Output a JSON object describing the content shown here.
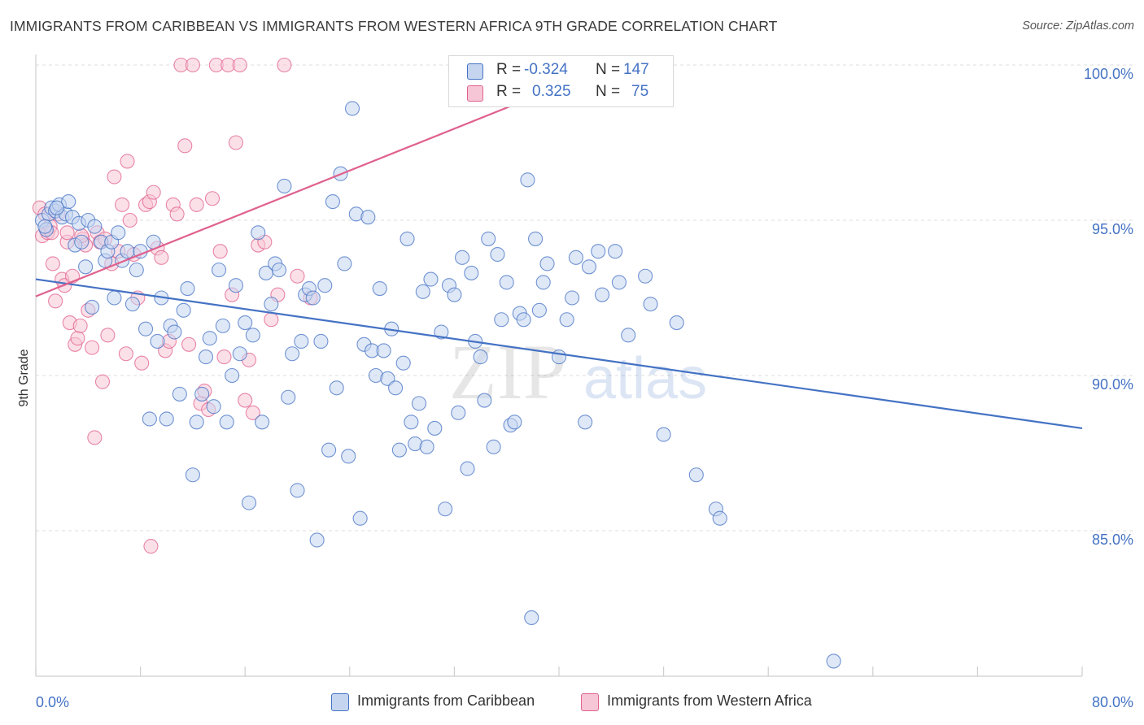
{
  "title": "IMMIGRANTS FROM CARIBBEAN VS IMMIGRANTS FROM WESTERN AFRICA 9TH GRADE CORRELATION CHART",
  "source": "Source: ZipAtlas.com",
  "watermark": {
    "zip": "ZIP",
    "atlas": "atlas"
  },
  "legend": {
    "r_label": "R =",
    "n_label": "N =",
    "rows": [
      {
        "r": "-0.324",
        "n": "147"
      },
      {
        "r": "0.325",
        "n": "75"
      }
    ]
  },
  "bottom_legend": [
    "Immigrants from Caribbean",
    "Immigrants from Western Africa"
  ],
  "chart_data": {
    "type": "scatter",
    "title": "IMMIGRANTS FROM CARIBBEAN VS IMMIGRANTS FROM WESTERN AFRICA 9TH GRADE CORRELATION CHART",
    "xlabel": "",
    "ylabel": "9th Grade",
    "xlim": [
      0,
      80
    ],
    "ylim": [
      80.5,
      100.5
    ],
    "x_tick_labels": [
      "0.0%",
      "80.0%"
    ],
    "y_ticks": [
      85,
      90,
      95,
      100
    ],
    "y_tick_labels": [
      "85.0%",
      "90.0%",
      "95.0%",
      "100.0%"
    ],
    "grid": true,
    "legend_position": "top-center",
    "colors": {
      "caribbean": "#4472c4",
      "caribbean_fill": "#c5d5f0",
      "west_africa": "#e0608e",
      "west_africa_fill": "#f7c6d6"
    },
    "series": [
      {
        "name": "Immigrants from Caribbean",
        "r": -0.324,
        "n": 147,
        "trend": {
          "x": [
            0,
            80
          ],
          "y": [
            93.1,
            88.3
          ]
        },
        "points": [
          [
            0.5,
            95.0
          ],
          [
            0.8,
            94.7
          ],
          [
            1.0,
            95.2
          ],
          [
            1.2,
            95.4
          ],
          [
            1.5,
            95.3
          ],
          [
            1.8,
            95.5
          ],
          [
            2.0,
            95.1
          ],
          [
            2.3,
            95.2
          ],
          [
            2.5,
            95.6
          ],
          [
            2.8,
            95.1
          ],
          [
            3.0,
            94.2
          ],
          [
            3.3,
            94.9
          ],
          [
            3.5,
            94.3
          ],
          [
            3.8,
            93.5
          ],
          [
            4.0,
            95.0
          ],
          [
            4.3,
            92.2
          ],
          [
            4.5,
            94.8
          ],
          [
            5.0,
            94.3
          ],
          [
            5.3,
            93.7
          ],
          [
            5.5,
            94.0
          ],
          [
            5.8,
            94.3
          ],
          [
            6.0,
            92.5
          ],
          [
            6.3,
            94.6
          ],
          [
            6.6,
            93.7
          ],
          [
            7.0,
            94.0
          ],
          [
            7.4,
            92.3
          ],
          [
            7.7,
            93.4
          ],
          [
            8.0,
            94.0
          ],
          [
            8.4,
            91.5
          ],
          [
            8.7,
            88.6
          ],
          [
            9.0,
            94.3
          ],
          [
            9.3,
            91.1
          ],
          [
            9.6,
            92.5
          ],
          [
            10.0,
            88.6
          ],
          [
            10.3,
            91.6
          ],
          [
            10.6,
            91.4
          ],
          [
            11.0,
            89.4
          ],
          [
            11.3,
            92.1
          ],
          [
            11.6,
            92.8
          ],
          [
            12.0,
            86.8
          ],
          [
            12.3,
            88.5
          ],
          [
            12.7,
            89.4
          ],
          [
            13.0,
            90.6
          ],
          [
            13.3,
            91.2
          ],
          [
            13.6,
            89.0
          ],
          [
            14.0,
            93.4
          ],
          [
            14.3,
            91.6
          ],
          [
            14.6,
            88.5
          ],
          [
            15.0,
            90.0
          ],
          [
            15.3,
            92.9
          ],
          [
            15.6,
            90.7
          ],
          [
            16.0,
            91.7
          ],
          [
            16.3,
            85.9
          ],
          [
            16.6,
            91.3
          ],
          [
            17.0,
            94.6
          ],
          [
            17.3,
            88.5
          ],
          [
            17.6,
            93.3
          ],
          [
            18.0,
            92.3
          ],
          [
            18.3,
            93.6
          ],
          [
            18.6,
            93.4
          ],
          [
            19.0,
            96.1
          ],
          [
            19.3,
            89.3
          ],
          [
            19.6,
            90.7
          ],
          [
            20.0,
            86.3
          ],
          [
            20.3,
            91.1
          ],
          [
            20.6,
            92.6
          ],
          [
            20.9,
            92.8
          ],
          [
            21.2,
            92.5
          ],
          [
            21.5,
            84.7
          ],
          [
            21.8,
            91.1
          ],
          [
            22.1,
            92.9
          ],
          [
            22.4,
            87.6
          ],
          [
            22.7,
            95.6
          ],
          [
            23.0,
            89.6
          ],
          [
            23.3,
            96.5
          ],
          [
            23.6,
            93.6
          ],
          [
            23.9,
            87.4
          ],
          [
            24.2,
            98.6
          ],
          [
            24.5,
            95.2
          ],
          [
            24.8,
            85.4
          ],
          [
            25.1,
            91.0
          ],
          [
            25.4,
            95.1
          ],
          [
            25.7,
            90.8
          ],
          [
            26.0,
            90.0
          ],
          [
            26.3,
            92.8
          ],
          [
            26.6,
            90.8
          ],
          [
            26.9,
            89.9
          ],
          [
            27.2,
            91.5
          ],
          [
            27.5,
            89.6
          ],
          [
            27.8,
            87.6
          ],
          [
            28.1,
            90.4
          ],
          [
            28.4,
            94.4
          ],
          [
            28.7,
            88.5
          ],
          [
            29.0,
            87.8
          ],
          [
            29.3,
            89.1
          ],
          [
            29.6,
            92.7
          ],
          [
            29.9,
            87.7
          ],
          [
            30.2,
            93.1
          ],
          [
            30.5,
            88.3
          ],
          [
            31.0,
            91.4
          ],
          [
            31.3,
            85.7
          ],
          [
            31.6,
            92.9
          ],
          [
            32.0,
            92.6
          ],
          [
            32.3,
            88.8
          ],
          [
            32.6,
            93.8
          ],
          [
            33.0,
            87.0
          ],
          [
            33.3,
            93.3
          ],
          [
            33.6,
            91.1
          ],
          [
            34.0,
            90.6
          ],
          [
            34.3,
            89.2
          ],
          [
            34.6,
            94.4
          ],
          [
            35.0,
            87.7
          ],
          [
            35.3,
            93.9
          ],
          [
            35.6,
            91.8
          ],
          [
            36.0,
            93.0
          ],
          [
            36.3,
            88.4
          ],
          [
            36.6,
            88.5
          ],
          [
            37.0,
            92.0
          ],
          [
            37.3,
            91.8
          ],
          [
            37.6,
            96.3
          ],
          [
            37.9,
            82.2
          ],
          [
            38.2,
            94.4
          ],
          [
            38.5,
            92.1
          ],
          [
            38.8,
            93.0
          ],
          [
            39.1,
            93.6
          ],
          [
            40.0,
            90.6
          ],
          [
            40.6,
            91.8
          ],
          [
            41.0,
            92.5
          ],
          [
            41.3,
            93.8
          ],
          [
            42.0,
            88.5
          ],
          [
            42.3,
            93.5
          ],
          [
            43.0,
            94.0
          ],
          [
            43.3,
            92.6
          ],
          [
            44.3,
            94.0
          ],
          [
            44.6,
            93.0
          ],
          [
            45.0,
            100.0
          ],
          [
            45.3,
            91.3
          ],
          [
            46.6,
            93.2
          ],
          [
            47.0,
            92.3
          ],
          [
            48.0,
            88.1
          ],
          [
            49.0,
            91.7
          ],
          [
            50.5,
            86.8
          ],
          [
            52.0,
            85.7
          ],
          [
            52.3,
            85.4
          ],
          [
            61.0,
            80.8
          ],
          [
            0.7,
            94.8
          ],
          [
            1.6,
            95.4
          ]
        ]
      },
      {
        "name": "Immigrants from Western Africa",
        "r": 0.325,
        "n": 75,
        "trend": {
          "x": [
            0,
            40
          ],
          "y": [
            92.55,
            99.3
          ]
        },
        "points": [
          [
            0.3,
            95.4
          ],
          [
            0.5,
            94.5
          ],
          [
            0.7,
            95.2
          ],
          [
            0.9,
            94.6
          ],
          [
            1.1,
            94.8
          ],
          [
            1.3,
            93.6
          ],
          [
            1.5,
            92.4
          ],
          [
            1.7,
            95.2
          ],
          [
            2.0,
            93.1
          ],
          [
            2.2,
            92.9
          ],
          [
            2.4,
            94.3
          ],
          [
            2.6,
            91.7
          ],
          [
            2.8,
            93.2
          ],
          [
            3.0,
            91.0
          ],
          [
            3.2,
            91.2
          ],
          [
            3.4,
            91.6
          ],
          [
            3.6,
            94.4
          ],
          [
            3.8,
            94.2
          ],
          [
            4.0,
            92.1
          ],
          [
            4.3,
            90.9
          ],
          [
            4.5,
            88.0
          ],
          [
            4.7,
            94.6
          ],
          [
            4.9,
            94.3
          ],
          [
            5.1,
            89.8
          ],
          [
            5.3,
            94.4
          ],
          [
            5.5,
            91.3
          ],
          [
            5.8,
            93.6
          ],
          [
            6.0,
            96.4
          ],
          [
            6.3,
            94.0
          ],
          [
            6.6,
            95.5
          ],
          [
            6.9,
            90.7
          ],
          [
            7.2,
            95.0
          ],
          [
            7.5,
            93.9
          ],
          [
            7.8,
            92.5
          ],
          [
            8.1,
            90.4
          ],
          [
            8.4,
            95.5
          ],
          [
            8.7,
            95.6
          ],
          [
            9.0,
            95.9
          ],
          [
            9.3,
            94.1
          ],
          [
            9.6,
            93.8
          ],
          [
            9.9,
            90.8
          ],
          [
            10.2,
            91.1
          ],
          [
            10.5,
            95.5
          ],
          [
            10.8,
            95.2
          ],
          [
            11.1,
            100.0
          ],
          [
            11.4,
            97.4
          ],
          [
            11.7,
            91.0
          ],
          [
            12.0,
            100.0
          ],
          [
            12.3,
            95.5
          ],
          [
            12.6,
            89.1
          ],
          [
            12.9,
            89.5
          ],
          [
            13.2,
            88.9
          ],
          [
            13.5,
            95.7
          ],
          [
            13.8,
            100.0
          ],
          [
            14.1,
            94.0
          ],
          [
            14.4,
            90.6
          ],
          [
            14.7,
            100.0
          ],
          [
            15.0,
            92.6
          ],
          [
            15.3,
            97.5
          ],
          [
            15.6,
            100.0
          ],
          [
            16.0,
            89.2
          ],
          [
            16.3,
            90.5
          ],
          [
            16.6,
            88.8
          ],
          [
            17.0,
            94.2
          ],
          [
            17.5,
            94.3
          ],
          [
            18.0,
            91.8
          ],
          [
            18.5,
            92.6
          ],
          [
            19.0,
            100.0
          ],
          [
            20.0,
            93.2
          ],
          [
            21.0,
            92.5
          ],
          [
            8.8,
            84.5
          ],
          [
            7.0,
            96.9
          ],
          [
            3.5,
            94.5
          ],
          [
            2.4,
            94.6
          ],
          [
            1.2,
            94.6
          ]
        ]
      }
    ]
  }
}
